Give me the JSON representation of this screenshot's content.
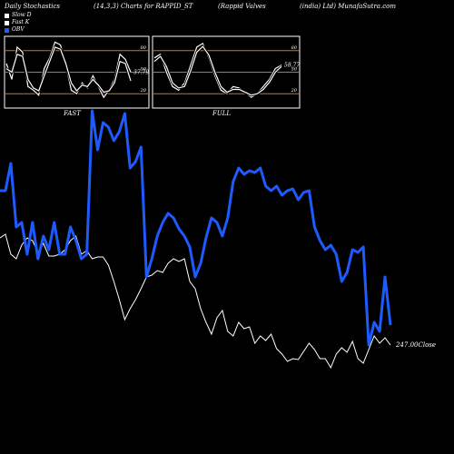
{
  "header": {
    "title": "Daily Stochastics",
    "params": "(14,3,3) Charts for RAPPID_ST",
    "company": "(Rappid Valves",
    "company2": "(india) Ltd) MunafaSutra.com"
  },
  "legend": [
    {
      "label": "Slow  D",
      "color": "#ffffff"
    },
    {
      "label": "Fast  K",
      "color": "#ffffff"
    },
    {
      "label": "OBV",
      "color": "#1e5bff"
    }
  ],
  "colors": {
    "obv": "#1e5bff",
    "price": "#ffffff",
    "band": "#c8780a"
  },
  "chart_data": [
    {
      "type": "line",
      "name": "fast-stochastic",
      "title": "FAST",
      "ylim": [
        0,
        100
      ],
      "yticks": [
        20,
        50,
        80
      ],
      "last_value_label": "37.79",
      "series": [
        {
          "name": "Fast K",
          "values": [
            62,
            40,
            85,
            78,
            30,
            25,
            18,
            55,
            70,
            92,
            88,
            60,
            25,
            20,
            35,
            28,
            45,
            30,
            15,
            25,
            40,
            75,
            68,
            50
          ]
        },
        {
          "name": "Slow D",
          "values": [
            55,
            50,
            75,
            72,
            40,
            28,
            24,
            45,
            65,
            85,
            82,
            62,
            35,
            24,
            32,
            30,
            40,
            32,
            22,
            24,
            35,
            65,
            62,
            38
          ]
        }
      ]
    },
    {
      "type": "line",
      "name": "full-stochastic",
      "title": "FULL",
      "ylim": [
        0,
        100
      ],
      "yticks": [
        20,
        50,
        80
      ],
      "last_value_label": "58.77",
      "series": [
        {
          "name": "Fast K",
          "values": [
            70,
            75,
            50,
            30,
            25,
            35,
            60,
            85,
            90,
            70,
            45,
            25,
            20,
            30,
            28,
            22,
            15,
            20,
            30,
            40,
            55,
            60
          ]
        },
        {
          "name": "Slow D",
          "values": [
            65,
            72,
            58,
            35,
            28,
            30,
            52,
            78,
            86,
            74,
            50,
            30,
            22,
            26,
            26,
            22,
            18,
            20,
            26,
            36,
            50,
            58
          ]
        }
      ]
    },
    {
      "type": "line",
      "name": "price-obv-chart",
      "price_label": "247.00",
      "price_label_suffix": "Close",
      "series": [
        {
          "name": "OBV",
          "values": [
            210,
            210,
            180,
            250,
            245,
            280,
            245,
            285,
            260,
            275,
            245,
            280,
            280,
            250,
            265,
            285,
            280,
            122,
            165,
            135,
            140,
            155,
            145,
            125,
            185,
            178,
            162,
            305,
            285,
            260,
            245,
            235,
            240,
            252,
            260,
            272,
            305,
            290,
            262,
            240,
            245,
            260,
            240,
            200,
            185,
            192,
            188,
            190,
            185,
            205,
            210,
            205,
            215,
            210,
            208,
            220,
            212,
            210,
            250,
            265,
            275,
            270,
            280,
            310,
            300,
            275,
            278,
            272,
            380,
            355,
            365,
            305,
            358
          ]
        },
        {
          "name": "Price",
          "values": [
            262,
            258,
            280,
            285,
            270,
            262,
            265,
            278,
            268,
            282,
            282,
            280,
            275,
            265,
            260,
            280,
            276,
            285,
            283,
            283,
            292,
            310,
            330,
            352,
            340,
            330,
            318,
            305,
            303,
            298,
            300,
            290,
            285,
            288,
            285,
            310,
            318,
            340,
            355,
            368,
            350,
            342,
            365,
            370,
            355,
            362,
            360,
            378,
            370,
            375,
            368,
            384,
            390,
            398,
            395,
            396,
            387,
            378,
            385,
            395,
            395,
            405,
            390,
            383,
            388,
            376,
            395,
            400,
            385,
            370,
            378,
            372,
            380
          ]
        }
      ]
    }
  ]
}
